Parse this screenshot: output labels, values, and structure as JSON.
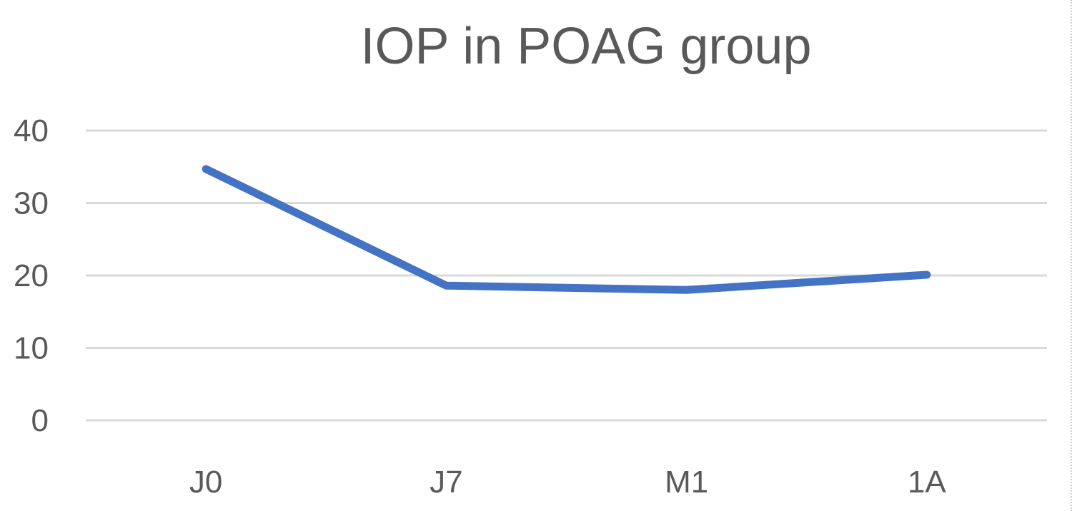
{
  "chart_data": {
    "type": "line",
    "title": "IOP in POAG group",
    "xlabel": "",
    "ylabel": "",
    "categories": [
      "J0",
      "J7",
      "M1",
      "1A"
    ],
    "series": [
      {
        "values": [
          34.7,
          18.6,
          18.0,
          20.1
        ],
        "color": "#4472C4"
      }
    ],
    "ylim": [
      0,
      40
    ],
    "yticks": [
      0,
      10,
      20,
      30,
      40
    ],
    "grid": true,
    "legend": "none",
    "colors": {
      "line": "#4472C4",
      "grid": "#D9D9D9",
      "text": "#595959"
    }
  }
}
